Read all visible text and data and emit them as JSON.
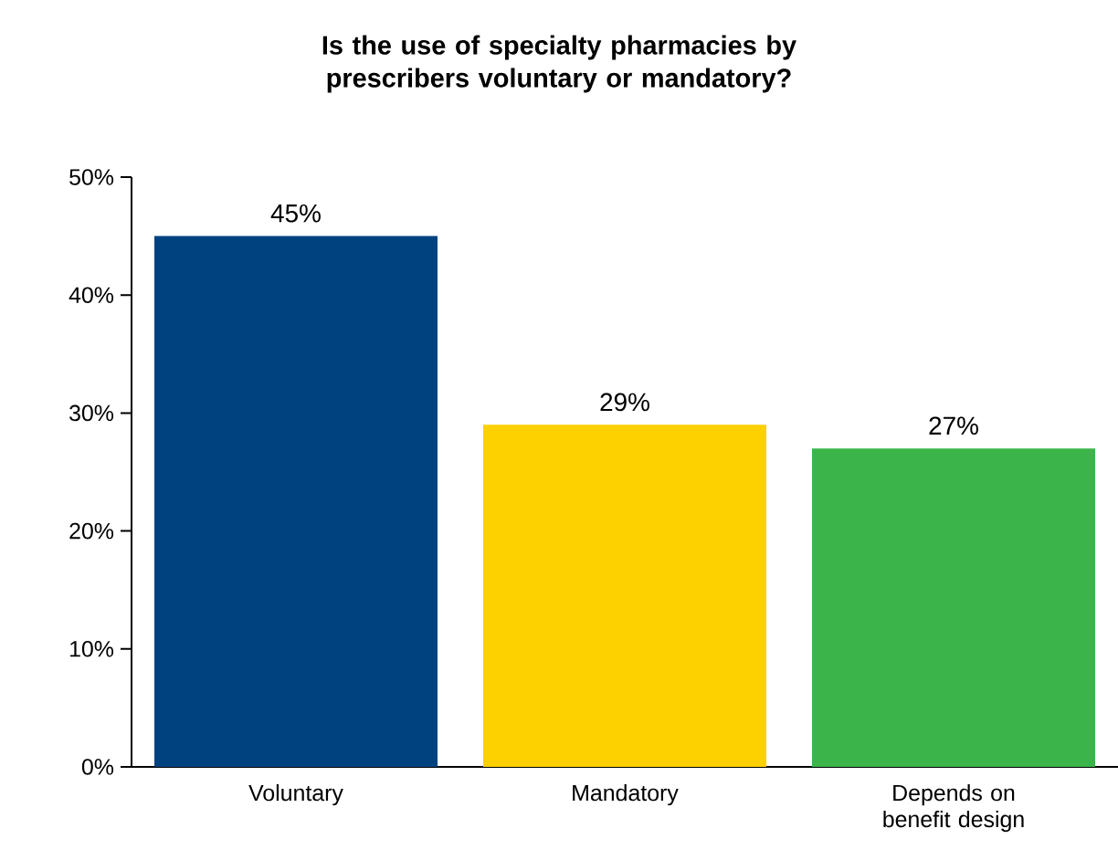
{
  "chart_data": {
    "type": "bar",
    "title": "Is the use of specialty pharmacies by prescribers voluntary or mandatory?",
    "categories": [
      "Voluntary",
      "Mandatory",
      "Depends on benefit design"
    ],
    "values": [
      45,
      29,
      27
    ],
    "colors": [
      "#004280",
      "#fdd000",
      "#3bb54a"
    ],
    "value_labels": [
      "45%",
      "29%",
      "27%"
    ],
    "ylim": [
      0,
      50
    ],
    "yticks": [
      {
        "value": 0,
        "label": "0%"
      },
      {
        "value": 10,
        "label": "10%"
      },
      {
        "value": 20,
        "label": "20%"
      },
      {
        "value": 30,
        "label": "30%"
      },
      {
        "value": 40,
        "label": "40%"
      },
      {
        "value": 50,
        "label": "50%"
      }
    ]
  }
}
